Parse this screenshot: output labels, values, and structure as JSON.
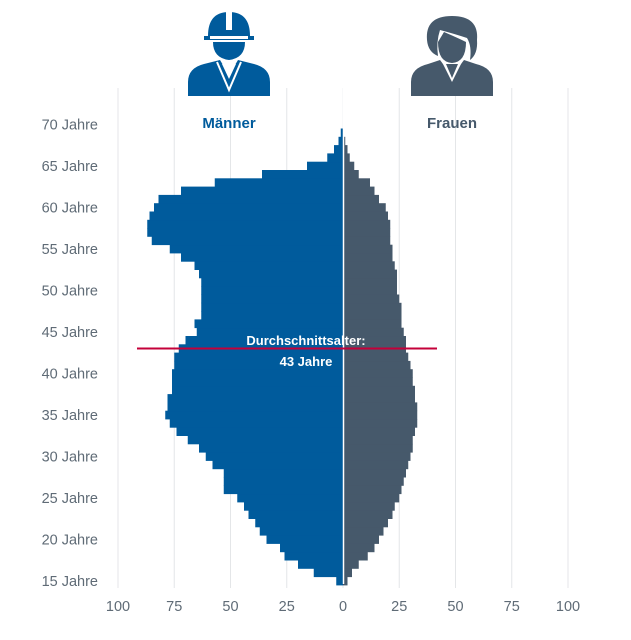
{
  "chart_data": {
    "type": "population-pyramid",
    "left_label": "Männer",
    "right_label": "Frauen",
    "left_icon": "male-worker-hardhat-icon",
    "right_icon": "female-worker-icon",
    "colors": {
      "male": "#005b9c",
      "female": "#46596b",
      "avg_line": "#c4003a",
      "icon_male": "#005b9c",
      "icon_female": "#46596b"
    },
    "x_ticks": [
      "100",
      "75",
      "50",
      "25",
      "0",
      "25",
      "50",
      "75",
      "100"
    ],
    "x_range": [
      -100,
      100
    ],
    "y_ticks": [
      "15 Jahre",
      "20 Jahre",
      "25 Jahre",
      "30 Jahre",
      "35 Jahre",
      "40 Jahre",
      "45 Jahre",
      "50 Jahre",
      "55 Jahre",
      "60 Jahre",
      "65 Jahre",
      "70 Jahre"
    ],
    "grid": true,
    "ages": [
      15,
      16,
      17,
      18,
      19,
      20,
      21,
      22,
      23,
      24,
      25,
      26,
      27,
      28,
      29,
      30,
      31,
      32,
      33,
      34,
      35,
      36,
      37,
      38,
      39,
      40,
      41,
      42,
      43,
      44,
      45,
      46,
      47,
      48,
      49,
      50,
      51,
      52,
      53,
      54,
      55,
      56,
      57,
      58,
      59,
      60,
      61,
      62,
      63,
      64,
      65,
      66,
      67,
      68,
      69,
      70
    ],
    "male": [
      3,
      13,
      20,
      26,
      28,
      34,
      37,
      39,
      42,
      44,
      47,
      53,
      53,
      53,
      58,
      61,
      64,
      69,
      74,
      77,
      79,
      78,
      78,
      76,
      76,
      76,
      75,
      75,
      73,
      70,
      65,
      66,
      63,
      63,
      63,
      63,
      63,
      64,
      66,
      72,
      77,
      85,
      87,
      87,
      86,
      84,
      82,
      72,
      57,
      36,
      16,
      7,
      4,
      2,
      1,
      0
    ],
    "female": [
      2,
      4,
      7,
      11,
      14,
      16,
      18,
      20,
      22,
      23,
      25,
      26,
      27,
      28,
      29,
      30,
      31,
      31,
      32,
      33,
      33,
      33,
      32,
      32,
      31,
      31,
      30,
      29,
      28,
      28,
      27,
      26,
      26,
      26,
      25,
      24,
      24,
      24,
      23,
      22,
      22,
      21,
      21,
      21,
      20,
      19,
      16,
      14,
      12,
      7,
      5,
      3,
      2,
      1,
      0,
      0
    ],
    "average_age": 43,
    "average_label_line1": "Durchschnittsalter:",
    "average_label_line2": "43 Jahre"
  }
}
